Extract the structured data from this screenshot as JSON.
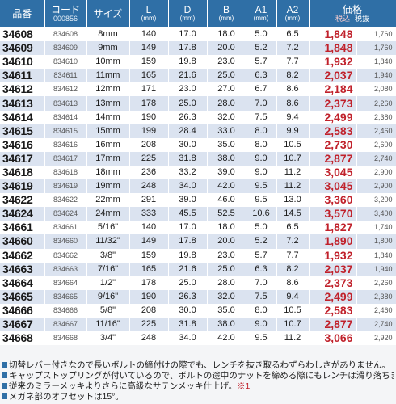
{
  "headers": {
    "part_no": "品番",
    "code": "コード",
    "code_sub": "000856",
    "size": "サイズ",
    "L": "L",
    "D": "D",
    "B": "B",
    "A1": "A1",
    "A2": "A2",
    "unit": "(mm)",
    "price": "価格",
    "tax_in": "税込",
    "tax_ex": "税抜"
  },
  "rows": [
    {
      "pno": "34608",
      "code": "834608",
      "size": "8mm",
      "L": "140",
      "D": "17.0",
      "B": "18.0",
      "A1": "5.0",
      "A2": "6.5",
      "price_in": "1,848",
      "price_ex": "1,760"
    },
    {
      "pno": "34609",
      "code": "834609",
      "size": "9mm",
      "L": "149",
      "D": "17.8",
      "B": "20.0",
      "A1": "5.2",
      "A2": "7.2",
      "price_in": "1,848",
      "price_ex": "1,760"
    },
    {
      "pno": "34610",
      "code": "834610",
      "size": "10mm",
      "L": "159",
      "D": "19.8",
      "B": "23.0",
      "A1": "5.7",
      "A2": "7.7",
      "price_in": "1,932",
      "price_ex": "1,840"
    },
    {
      "pno": "34611",
      "code": "834611",
      "size": "11mm",
      "L": "165",
      "D": "21.6",
      "B": "25.0",
      "A1": "6.3",
      "A2": "8.2",
      "price_in": "2,037",
      "price_ex": "1,940"
    },
    {
      "pno": "34612",
      "code": "834612",
      "size": "12mm",
      "L": "171",
      "D": "23.0",
      "B": "27.0",
      "A1": "6.7",
      "A2": "8.6",
      "price_in": "2,184",
      "price_ex": "2,080"
    },
    {
      "pno": "34613",
      "code": "834613",
      "size": "13mm",
      "L": "178",
      "D": "25.0",
      "B": "28.0",
      "A1": "7.0",
      "A2": "8.6",
      "price_in": "2,373",
      "price_ex": "2,260"
    },
    {
      "pno": "34614",
      "code": "834614",
      "size": "14mm",
      "L": "190",
      "D": "26.3",
      "B": "32.0",
      "A1": "7.5",
      "A2": "9.4",
      "price_in": "2,499",
      "price_ex": "2,380"
    },
    {
      "pno": "34615",
      "code": "834615",
      "size": "15mm",
      "L": "199",
      "D": "28.4",
      "B": "33.0",
      "A1": "8.0",
      "A2": "9.9",
      "price_in": "2,583",
      "price_ex": "2,460"
    },
    {
      "pno": "34616",
      "code": "834616",
      "size": "16mm",
      "L": "208",
      "D": "30.0",
      "B": "35.0",
      "A1": "8.0",
      "A2": "10.5",
      "price_in": "2,730",
      "price_ex": "2,600"
    },
    {
      "pno": "34617",
      "code": "834617",
      "size": "17mm",
      "L": "225",
      "D": "31.8",
      "B": "38.0",
      "A1": "9.0",
      "A2": "10.7",
      "price_in": "2,877",
      "price_ex": "2,740"
    },
    {
      "pno": "34618",
      "code": "834618",
      "size": "18mm",
      "L": "236",
      "D": "33.2",
      "B": "39.0",
      "A1": "9.0",
      "A2": "11.2",
      "price_in": "3,045",
      "price_ex": "2,900"
    },
    {
      "pno": "34619",
      "code": "834619",
      "size": "19mm",
      "L": "248",
      "D": "34.0",
      "B": "42.0",
      "A1": "9.5",
      "A2": "11.2",
      "price_in": "3,045",
      "price_ex": "2,900"
    },
    {
      "pno": "34622",
      "code": "834622",
      "size": "22mm",
      "L": "291",
      "D": "39.0",
      "B": "46.0",
      "A1": "9.5",
      "A2": "13.0",
      "price_in": "3,360",
      "price_ex": "3,200"
    },
    {
      "pno": "34624",
      "code": "834624",
      "size": "24mm",
      "L": "333",
      "D": "45.5",
      "B": "52.5",
      "A1": "10.6",
      "A2": "14.5",
      "price_in": "3,570",
      "price_ex": "3,400"
    },
    {
      "pno": "34661",
      "code": "834661",
      "size": "5/16\"",
      "L": "140",
      "D": "17.0",
      "B": "18.0",
      "A1": "5.0",
      "A2": "6.5",
      "price_in": "1,827",
      "price_ex": "1,740"
    },
    {
      "pno": "34660",
      "code": "834660",
      "size": "11/32\"",
      "L": "149",
      "D": "17.8",
      "B": "20.0",
      "A1": "5.2",
      "A2": "7.2",
      "price_in": "1,890",
      "price_ex": "1,800"
    },
    {
      "pno": "34662",
      "code": "834662",
      "size": "3/8\"",
      "L": "159",
      "D": "19.8",
      "B": "23.0",
      "A1": "5.7",
      "A2": "7.7",
      "price_in": "1,932",
      "price_ex": "1,840"
    },
    {
      "pno": "34663",
      "code": "834663",
      "size": "7/16\"",
      "L": "165",
      "D": "21.6",
      "B": "25.0",
      "A1": "6.3",
      "A2": "8.2",
      "price_in": "2,037",
      "price_ex": "1,940"
    },
    {
      "pno": "34664",
      "code": "834664",
      "size": "1/2\"",
      "L": "178",
      "D": "25.0",
      "B": "28.0",
      "A1": "7.0",
      "A2": "8.6",
      "price_in": "2,373",
      "price_ex": "2,260"
    },
    {
      "pno": "34665",
      "code": "834665",
      "size": "9/16\"",
      "L": "190",
      "D": "26.3",
      "B": "32.0",
      "A1": "7.5",
      "A2": "9.4",
      "price_in": "2,499",
      "price_ex": "2,380"
    },
    {
      "pno": "34666",
      "code": "834666",
      "size": "5/8\"",
      "L": "208",
      "D": "30.0",
      "B": "35.0",
      "A1": "8.0",
      "A2": "10.5",
      "price_in": "2,583",
      "price_ex": "2,460"
    },
    {
      "pno": "34667",
      "code": "834667",
      "size": "11/16\"",
      "L": "225",
      "D": "31.8",
      "B": "38.0",
      "A1": "9.0",
      "A2": "10.7",
      "price_in": "2,877",
      "price_ex": "2,740"
    },
    {
      "pno": "34668",
      "code": "834668",
      "size": "3/4\"",
      "L": "248",
      "D": "34.0",
      "B": "42.0",
      "A1": "9.5",
      "A2": "11.2",
      "price_in": "3,066",
      "price_ex": "2,920"
    }
  ],
  "notes": [
    {
      "text": "切替レバー付きなので長いボルトの締付けの際でも、レンチを抜き取るわずらわしさがありません。",
      "ref": ""
    },
    {
      "text": "キャップストップリングが付いているので、ボルトの途中のナットを締める際にもレンチは滑り落ちません。",
      "ref": ""
    },
    {
      "text": "従来のミラーメッキよりさらに高級なサテンメッキ仕上げ。",
      "ref": "※1"
    },
    {
      "text": "メガネ部のオフセットは15°。",
      "ref": ""
    }
  ],
  "colors": {
    "header_bg": "#2f6fa6",
    "row_alt": "#dbe3f0",
    "price_red": "#c0212b"
  }
}
